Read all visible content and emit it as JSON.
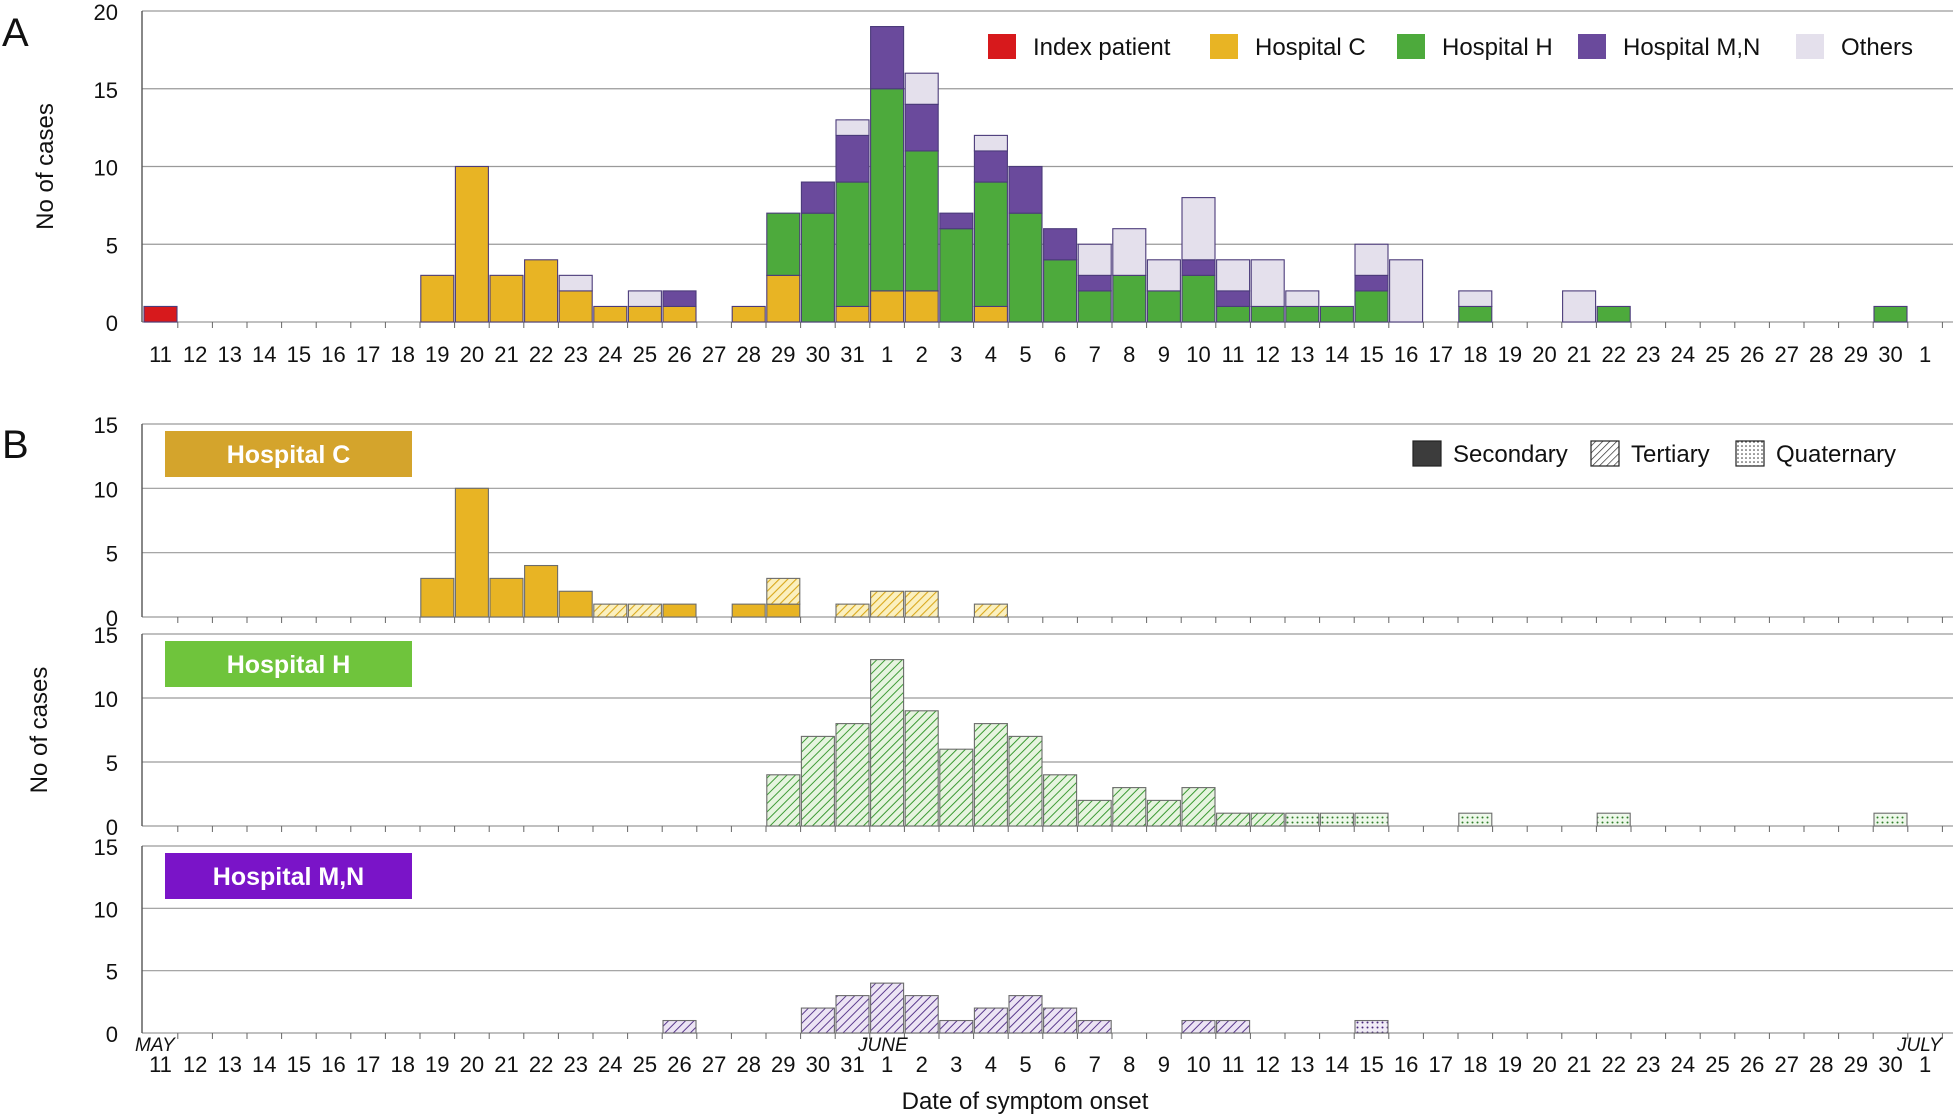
{
  "panel_labels": [
    "A",
    "B"
  ],
  "xlabel": "Date of symptom onset",
  "month_labels": [
    "MAY",
    "JUNE",
    "JULY"
  ],
  "day_labels": [
    "11",
    "12",
    "13",
    "14",
    "15",
    "16",
    "17",
    "18",
    "19",
    "20",
    "21",
    "22",
    "23",
    "24",
    "25",
    "26",
    "27",
    "28",
    "29",
    "30",
    "31",
    "1",
    "2",
    "3",
    "4",
    "5",
    "6",
    "7",
    "8",
    "9",
    "10",
    "11",
    "12",
    "13",
    "14",
    "15",
    "16",
    "17",
    "18",
    "19",
    "20",
    "21",
    "22",
    "23",
    "24",
    "25",
    "26",
    "27",
    "28",
    "29",
    "30",
    "1"
  ],
  "colors": {
    "index": "#d7191c",
    "hospital_c": "#e8b424",
    "hospital_h": "#4daa3c",
    "hospital_mn": "#6a4a9c",
    "others": "#e4e0ec",
    "bar_edge": "#4b3b7a",
    "grid": "#9a9a9a"
  },
  "chart_data": [
    {
      "type": "bar",
      "stacked": true,
      "panel": "A",
      "ylabel": "No of cases",
      "ylim": [
        0,
        20
      ],
      "yticks": [
        0,
        5,
        10,
        15,
        20
      ],
      "legend": {
        "placement": "top-right",
        "entries": [
          "Index patient",
          "Hospital C",
          "Hospital H",
          "Hospital M,N",
          "Others"
        ]
      },
      "categories": [
        "May 11",
        "May 12",
        "May 13",
        "May 14",
        "May 15",
        "May 16",
        "May 17",
        "May 18",
        "May 19",
        "May 20",
        "May 21",
        "May 22",
        "May 23",
        "May 24",
        "May 25",
        "May 26",
        "May 27",
        "May 28",
        "May 29",
        "May 30",
        "May 31",
        "Jun 1",
        "Jun 2",
        "Jun 3",
        "Jun 4",
        "Jun 5",
        "Jun 6",
        "Jun 7",
        "Jun 8",
        "Jun 9",
        "Jun 10",
        "Jun 11",
        "Jun 12",
        "Jun 13",
        "Jun 14",
        "Jun 15",
        "Jun 16",
        "Jun 17",
        "Jun 18",
        "Jun 19",
        "Jun 20",
        "Jun 21",
        "Jun 22",
        "Jun 23",
        "Jun 24",
        "Jun 25",
        "Jun 26",
        "Jun 27",
        "Jun 28",
        "Jun 29",
        "Jun 30",
        "Jul 1"
      ],
      "series": [
        {
          "name": "Index patient",
          "values": [
            1,
            0,
            0,
            0,
            0,
            0,
            0,
            0,
            0,
            0,
            0,
            0,
            0,
            0,
            0,
            0,
            0,
            0,
            0,
            0,
            0,
            0,
            0,
            0,
            0,
            0,
            0,
            0,
            0,
            0,
            0,
            0,
            0,
            0,
            0,
            0,
            0,
            0,
            0,
            0,
            0,
            0,
            0,
            0,
            0,
            0,
            0,
            0,
            0,
            0,
            0,
            0
          ]
        },
        {
          "name": "Hospital C",
          "values": [
            0,
            0,
            0,
            0,
            0,
            0,
            0,
            0,
            3,
            10,
            3,
            4,
            2,
            1,
            1,
            1,
            0,
            1,
            3,
            0,
            1,
            2,
            2,
            0,
            1,
            0,
            0,
            0,
            0,
            0,
            0,
            0,
            0,
            0,
            0,
            0,
            0,
            0,
            0,
            0,
            0,
            0,
            0,
            0,
            0,
            0,
            0,
            0,
            0,
            0,
            0,
            0
          ]
        },
        {
          "name": "Hospital H",
          "values": [
            0,
            0,
            0,
            0,
            0,
            0,
            0,
            0,
            0,
            0,
            0,
            0,
            0,
            0,
            0,
            0,
            0,
            0,
            4,
            7,
            8,
            13,
            9,
            6,
            8,
            7,
            4,
            2,
            3,
            2,
            3,
            1,
            1,
            1,
            1,
            2,
            0,
            0,
            1,
            0,
            0,
            0,
            1,
            0,
            0,
            0,
            0,
            0,
            0,
            0,
            1,
            0
          ]
        },
        {
          "name": "Hospital M,N",
          "values": [
            0,
            0,
            0,
            0,
            0,
            0,
            0,
            0,
            0,
            0,
            0,
            0,
            0,
            0,
            0,
            1,
            0,
            0,
            0,
            2,
            3,
            4,
            3,
            1,
            2,
            3,
            2,
            1,
            0,
            0,
            1,
            1,
            0,
            0,
            0,
            1,
            0,
            0,
            0,
            0,
            0,
            0,
            0,
            0,
            0,
            0,
            0,
            0,
            0,
            0,
            0,
            0
          ]
        },
        {
          "name": "Others",
          "values": [
            0,
            0,
            0,
            0,
            0,
            0,
            0,
            0,
            0,
            0,
            0,
            0,
            1,
            0,
            1,
            0,
            0,
            0,
            0,
            0,
            1,
            0,
            2,
            0,
            1,
            0,
            0,
            2,
            3,
            2,
            4,
            2,
            3,
            1,
            0,
            2,
            4,
            0,
            1,
            0,
            0,
            2,
            0,
            0,
            0,
            0,
            0,
            0,
            0,
            0,
            0,
            0
          ]
        }
      ]
    },
    {
      "type": "bar",
      "stacked": true,
      "panel": "B",
      "title": "Hospital C",
      "ylabel": "No of cases",
      "ylim": [
        0,
        15
      ],
      "yticks": [
        0,
        5,
        10,
        15
      ],
      "legend": {
        "placement": "top-right",
        "entries": [
          "Secondary",
          "Tertiary",
          "Quaternary"
        ]
      },
      "series": [
        {
          "name": "Secondary",
          "values": [
            0,
            0,
            0,
            0,
            0,
            0,
            0,
            0,
            3,
            10,
            3,
            4,
            2,
            0,
            0,
            1,
            0,
            1,
            1,
            0,
            0,
            0,
            0,
            0,
            0,
            0,
            0,
            0,
            0,
            0,
            0,
            0,
            0,
            0,
            0,
            0,
            0,
            0,
            0,
            0,
            0,
            0,
            0,
            0,
            0,
            0,
            0,
            0,
            0,
            0,
            0,
            0
          ]
        },
        {
          "name": "Tertiary",
          "values": [
            0,
            0,
            0,
            0,
            0,
            0,
            0,
            0,
            0,
            0,
            0,
            0,
            0,
            1,
            1,
            0,
            0,
            0,
            2,
            0,
            1,
            2,
            2,
            0,
            1,
            0,
            0,
            0,
            0,
            0,
            0,
            0,
            0,
            0,
            0,
            0,
            0,
            0,
            0,
            0,
            0,
            0,
            0,
            0,
            0,
            0,
            0,
            0,
            0,
            0,
            0,
            0
          ]
        },
        {
          "name": "Quaternary",
          "values": [
            0,
            0,
            0,
            0,
            0,
            0,
            0,
            0,
            0,
            0,
            0,
            0,
            0,
            0,
            0,
            0,
            0,
            0,
            0,
            0,
            0,
            0,
            0,
            0,
            0,
            0,
            0,
            0,
            0,
            0,
            0,
            0,
            0,
            0,
            0,
            0,
            0,
            0,
            0,
            0,
            0,
            0,
            0,
            0,
            0,
            0,
            0,
            0,
            0,
            0,
            0,
            0
          ]
        }
      ]
    },
    {
      "type": "bar",
      "stacked": true,
      "panel": "B",
      "title": "Hospital H",
      "ylabel": "No of cases",
      "ylim": [
        0,
        15
      ],
      "yticks": [
        0,
        5,
        10,
        15
      ],
      "series": [
        {
          "name": "Secondary",
          "values": [
            0,
            0,
            0,
            0,
            0,
            0,
            0,
            0,
            0,
            0,
            0,
            0,
            0,
            0,
            0,
            0,
            0,
            0,
            0,
            0,
            0,
            0,
            0,
            0,
            0,
            0,
            0,
            0,
            0,
            0,
            0,
            0,
            0,
            0,
            0,
            0,
            0,
            0,
            0,
            0,
            0,
            0,
            0,
            0,
            0,
            0,
            0,
            0,
            0,
            0,
            0,
            0
          ]
        },
        {
          "name": "Tertiary",
          "values": [
            0,
            0,
            0,
            0,
            0,
            0,
            0,
            0,
            0,
            0,
            0,
            0,
            0,
            0,
            0,
            0,
            0,
            0,
            4,
            7,
            8,
            13,
            9,
            6,
            8,
            7,
            4,
            2,
            3,
            2,
            3,
            1,
            1,
            0,
            0,
            0,
            0,
            0,
            0,
            0,
            0,
            0,
            0,
            0,
            0,
            0,
            0,
            0,
            0,
            0,
            0,
            0
          ]
        },
        {
          "name": "Quaternary",
          "values": [
            0,
            0,
            0,
            0,
            0,
            0,
            0,
            0,
            0,
            0,
            0,
            0,
            0,
            0,
            0,
            0,
            0,
            0,
            0,
            0,
            0,
            0,
            0,
            0,
            0,
            0,
            0,
            0,
            0,
            0,
            0,
            0,
            0,
            1,
            1,
            1,
            0,
            0,
            1,
            0,
            0,
            0,
            1,
            0,
            0,
            0,
            0,
            0,
            0,
            0,
            1,
            0
          ]
        }
      ]
    },
    {
      "type": "bar",
      "stacked": true,
      "panel": "B",
      "title": "Hospital M,N",
      "ylabel": "",
      "ylim": [
        0,
        15
      ],
      "yticks": [
        0,
        5,
        10,
        15
      ],
      "series": [
        {
          "name": "Secondary",
          "values": [
            0,
            0,
            0,
            0,
            0,
            0,
            0,
            0,
            0,
            0,
            0,
            0,
            0,
            0,
            0,
            0,
            0,
            0,
            0,
            0,
            0,
            0,
            0,
            0,
            0,
            0,
            0,
            0,
            0,
            0,
            0,
            0,
            0,
            0,
            0,
            0,
            0,
            0,
            0,
            0,
            0,
            0,
            0,
            0,
            0,
            0,
            0,
            0,
            0,
            0,
            0,
            0
          ]
        },
        {
          "name": "Tertiary",
          "values": [
            0,
            0,
            0,
            0,
            0,
            0,
            0,
            0,
            0,
            0,
            0,
            0,
            0,
            0,
            0,
            1,
            0,
            0,
            0,
            2,
            3,
            4,
            3,
            1,
            2,
            3,
            2,
            1,
            0,
            0,
            1,
            1,
            0,
            0,
            0,
            0,
            0,
            0,
            0,
            0,
            0,
            0,
            0,
            0,
            0,
            0,
            0,
            0,
            0,
            0,
            0,
            0
          ]
        },
        {
          "name": "Quaternary",
          "values": [
            0,
            0,
            0,
            0,
            0,
            0,
            0,
            0,
            0,
            0,
            0,
            0,
            0,
            0,
            0,
            0,
            0,
            0,
            0,
            0,
            0,
            0,
            0,
            0,
            0,
            0,
            0,
            0,
            0,
            0,
            0,
            0,
            0,
            0,
            0,
            1,
            0,
            0,
            0,
            0,
            0,
            0,
            0,
            0,
            0,
            0,
            0,
            0,
            0,
            0,
            0,
            0
          ]
        }
      ]
    }
  ]
}
